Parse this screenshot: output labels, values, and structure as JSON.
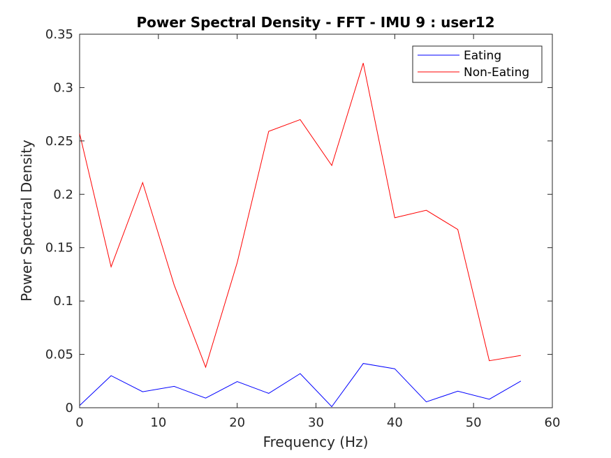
{
  "chart_data": {
    "type": "line",
    "title": "Power Spectral Density - FFT - IMU 9 :  user12",
    "xlabel": "Frequency (Hz)",
    "ylabel": "Power Spectral Density",
    "xlim": [
      0,
      60
    ],
    "ylim": [
      0,
      0.35
    ],
    "xticks": [
      0,
      10,
      20,
      30,
      40,
      50,
      60
    ],
    "yticks": [
      0,
      0.05,
      0.1,
      0.15,
      0.2,
      0.25,
      0.3,
      0.35
    ],
    "xtick_labels": [
      "0",
      "10",
      "20",
      "30",
      "40",
      "50",
      "60"
    ],
    "ytick_labels": [
      "0",
      "0.05",
      "0.1",
      "0.15",
      "0.2",
      "0.25",
      "0.3",
      "0.35"
    ],
    "grid": false,
    "legend_position": "top-right",
    "x": [
      0,
      4,
      8,
      12,
      16,
      20,
      24,
      28,
      32,
      36,
      40,
      44,
      48,
      52,
      56
    ],
    "series": [
      {
        "name": "Eating",
        "color": "#0000ff",
        "values": [
          0.002,
          0.03,
          0.015,
          0.02,
          0.009,
          0.0245,
          0.0135,
          0.032,
          0.001,
          0.0415,
          0.0365,
          0.0055,
          0.0155,
          0.008,
          0.025
        ]
      },
      {
        "name": "Non-Eating",
        "color": "#ff0000",
        "values": [
          0.257,
          0.132,
          0.211,
          0.115,
          0.038,
          0.136,
          0.259,
          0.27,
          0.227,
          0.323,
          0.178,
          0.185,
          0.167,
          0.044,
          0.049
        ]
      }
    ]
  }
}
